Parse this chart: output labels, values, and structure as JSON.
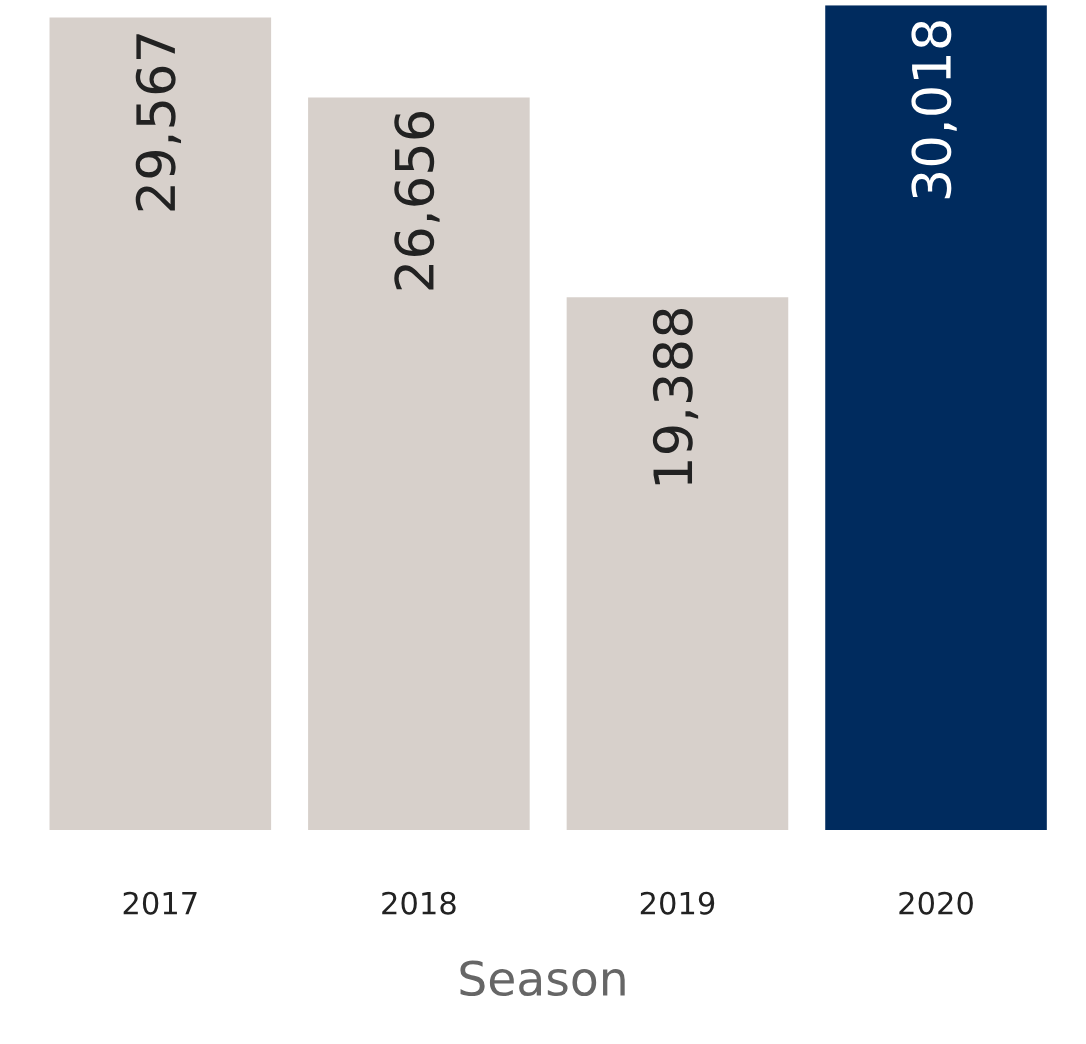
{
  "chart_data": {
    "type": "bar",
    "xlabel": "Season",
    "categories": [
      "2017",
      "2018",
      "2019",
      "2020"
    ],
    "values": [
      29567,
      26656,
      19388,
      30018
    ],
    "value_labels": [
      "29,567",
      "26,656",
      "19,388",
      "30,018"
    ],
    "colors": [
      "#d7d0cb",
      "#d7d0cb",
      "#d7d0cb",
      "#002b5e"
    ],
    "grid": false,
    "legend": false
  }
}
